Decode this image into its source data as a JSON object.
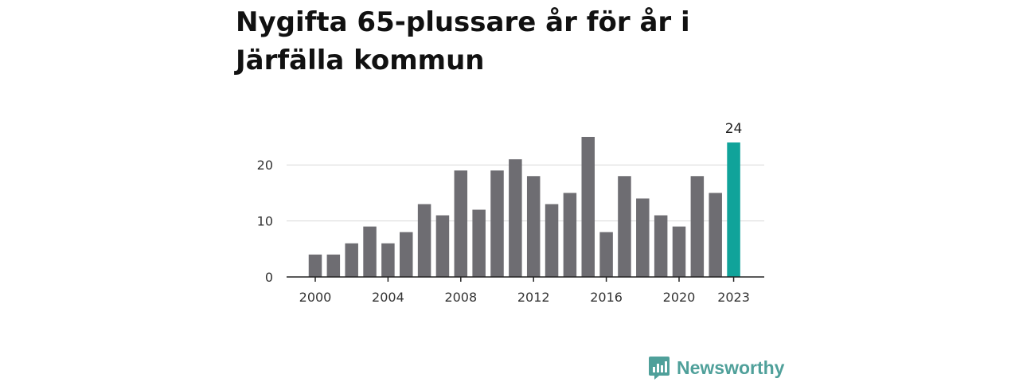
{
  "title": "Nygifta 65-plussare år för år i Järfälla kommun",
  "brand": {
    "name": "Newsworthy",
    "color": "#4fa09a",
    "icon": "newsworthy-logo-icon"
  },
  "colors": {
    "bar": "#6e6d72",
    "highlight": "#10a39a",
    "grid": "#d9d9d9",
    "axis": "#222222"
  },
  "chart_data": {
    "type": "bar",
    "title": "Nygifta 65-plussare år för år i Järfälla kommun",
    "xlabel": "",
    "ylabel": "",
    "categories": [
      "2000",
      "2001",
      "2002",
      "2003",
      "2004",
      "2005",
      "2006",
      "2007",
      "2008",
      "2009",
      "2010",
      "2011",
      "2012",
      "2013",
      "2014",
      "2015",
      "2016",
      "2017",
      "2018",
      "2019",
      "2020",
      "2021",
      "2022",
      "2023"
    ],
    "values": [
      4,
      4,
      6,
      9,
      6,
      8,
      13,
      11,
      19,
      12,
      19,
      21,
      18,
      13,
      15,
      25,
      8,
      18,
      14,
      11,
      9,
      18,
      15,
      24
    ],
    "highlight_index": 23,
    "value_labels": [
      {
        "category": "2023",
        "text": "24"
      }
    ],
    "x_tick_labels": [
      "2000",
      "2004",
      "2008",
      "2012",
      "2016",
      "2020",
      "2023"
    ],
    "y_ticks": [
      0,
      10,
      20
    ],
    "y_tick_labels": [
      "0",
      "10",
      "20"
    ],
    "ylim": [
      0,
      25
    ],
    "grid": true,
    "legend": "none"
  }
}
